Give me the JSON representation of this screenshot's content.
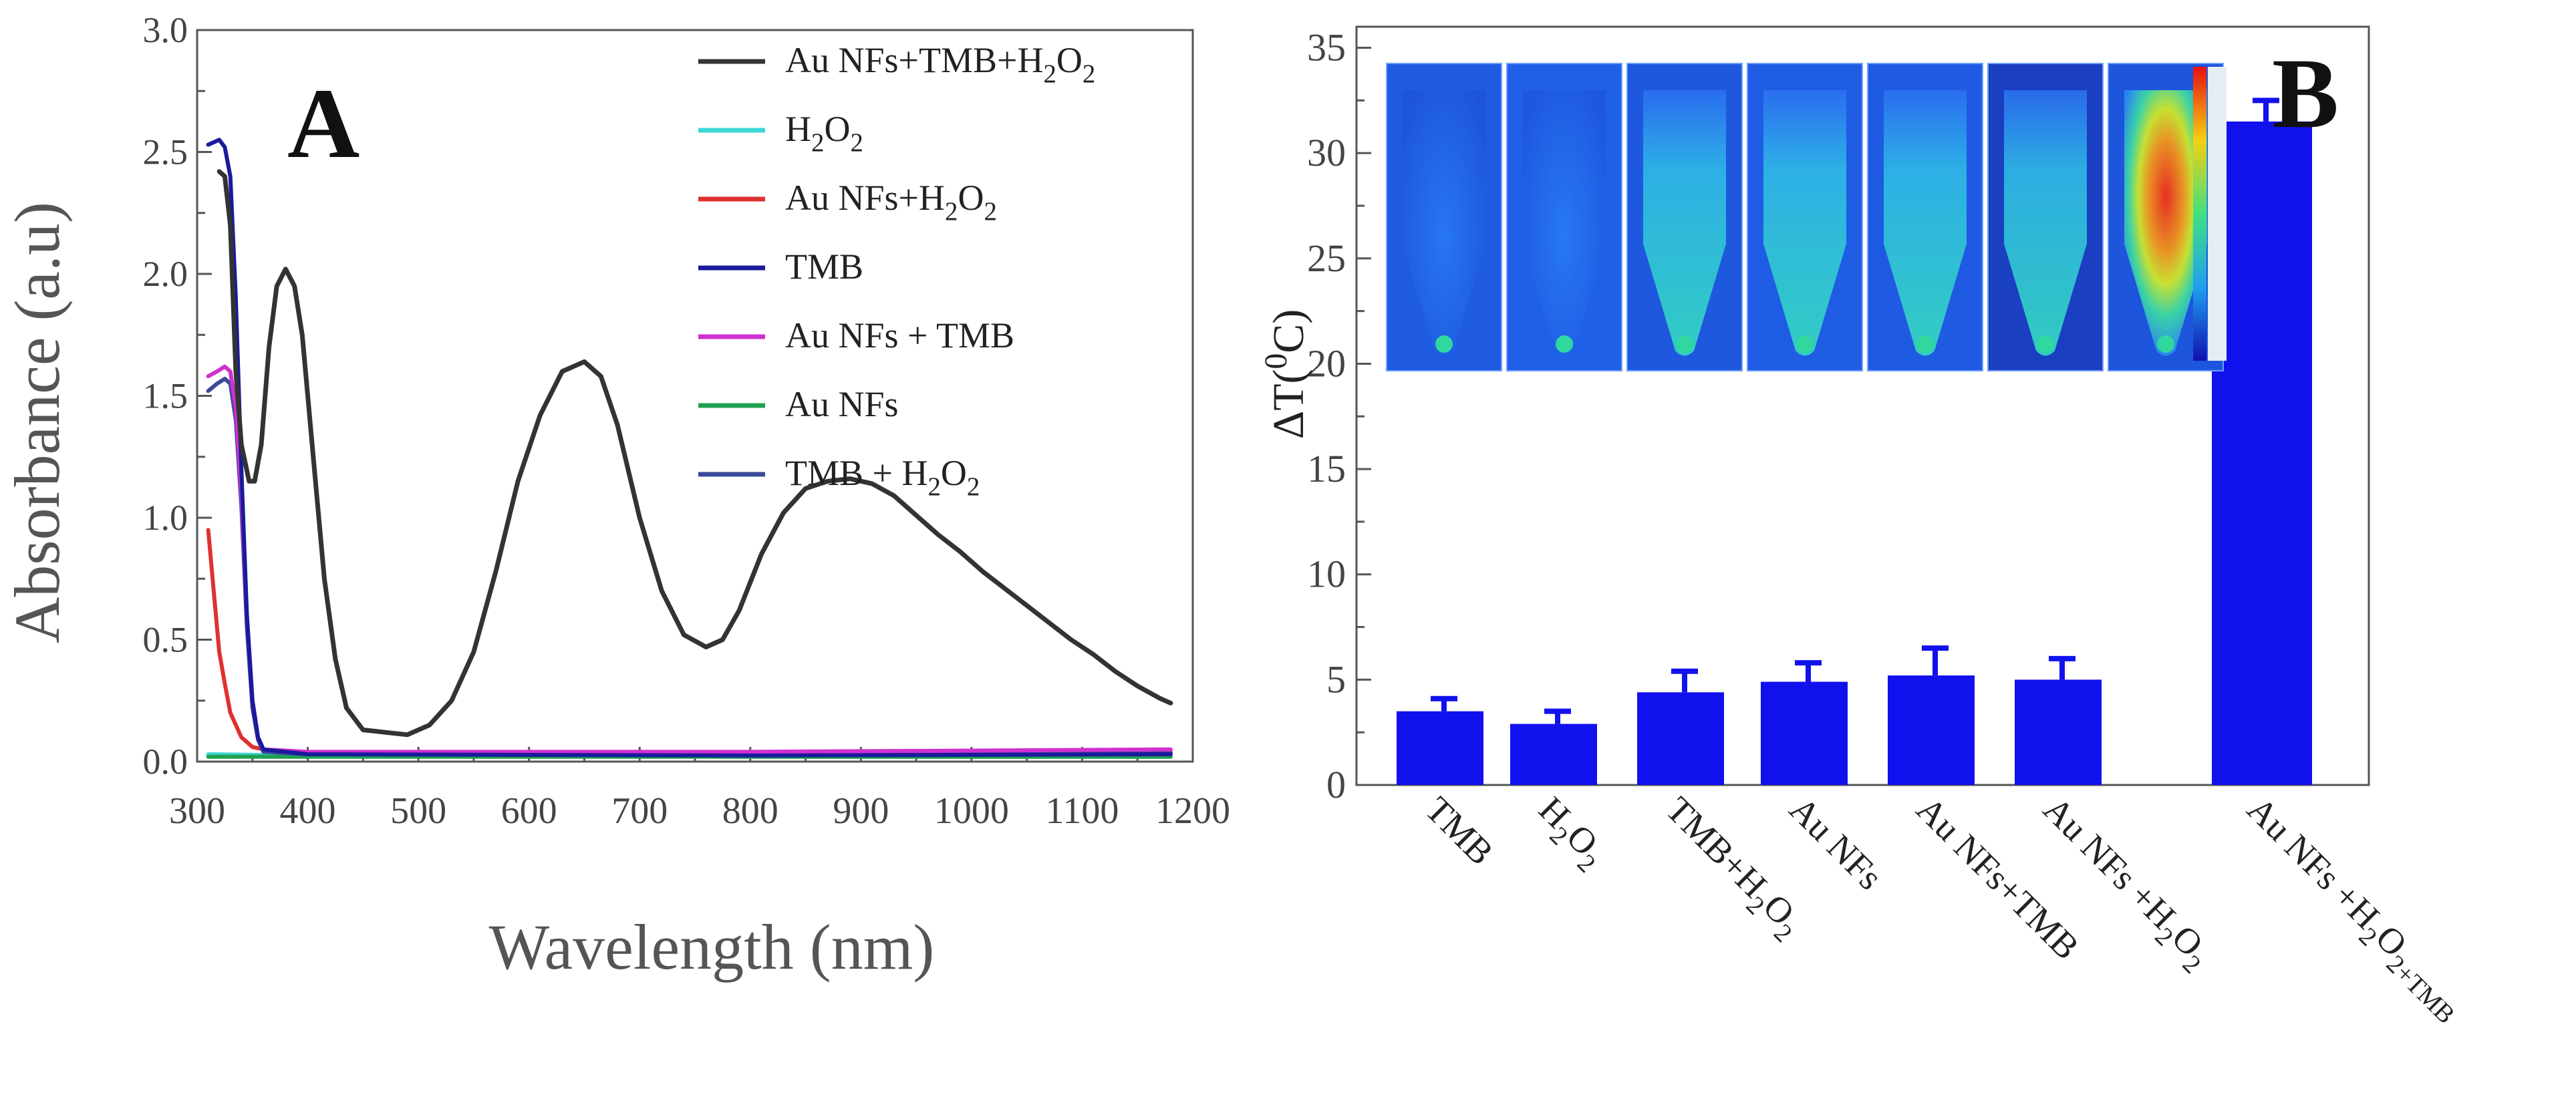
{
  "chart_data": [
    {
      "panel": "A",
      "type": "line",
      "title": "",
      "xlabel": "Wavelength (nm)",
      "ylabel": "Absorbance (a.u)",
      "xlim": [
        300,
        1200
      ],
      "ylim": [
        0,
        3.0
      ],
      "xticks": [
        300,
        400,
        500,
        600,
        700,
        800,
        900,
        1000,
        1100,
        1200
      ],
      "yticks": [
        0.0,
        0.5,
        1.0,
        1.5,
        2.0,
        2.5,
        3.0
      ],
      "yticks_labels": [
        "0.0",
        "0.5",
        "1.0",
        "1.5",
        "2.0",
        "2.5",
        "3.0"
      ],
      "legend_position": "top-right",
      "series": [
        {
          "name": "Au NFs+TMB+H2O2",
          "legend_parts": [
            [
              "Au NFs+TMB+H",
              0
            ],
            [
              "2",
              1
            ],
            [
              "O",
              0
            ],
            [
              "2",
              1
            ]
          ],
          "color": "#333333",
          "points": [
            [
              320,
              2.42
            ],
            [
              325,
              2.4
            ],
            [
              330,
              2.2
            ],
            [
              335,
              1.6
            ],
            [
              340,
              1.3
            ],
            [
              347,
              1.15
            ],
            [
              352,
              1.15
            ],
            [
              358,
              1.3
            ],
            [
              365,
              1.7
            ],
            [
              372,
              1.95
            ],
            [
              380,
              2.02
            ],
            [
              388,
              1.95
            ],
            [
              395,
              1.75
            ],
            [
              405,
              1.25
            ],
            [
              415,
              0.75
            ],
            [
              425,
              0.42
            ],
            [
              435,
              0.22
            ],
            [
              450,
              0.13
            ],
            [
              470,
              0.12
            ],
            [
              490,
              0.11
            ],
            [
              510,
              0.15
            ],
            [
              530,
              0.25
            ],
            [
              550,
              0.45
            ],
            [
              570,
              0.78
            ],
            [
              590,
              1.15
            ],
            [
              610,
              1.42
            ],
            [
              630,
              1.6
            ],
            [
              650,
              1.64
            ],
            [
              665,
              1.58
            ],
            [
              680,
              1.38
            ],
            [
              700,
              1.0
            ],
            [
              720,
              0.7
            ],
            [
              740,
              0.52
            ],
            [
              760,
              0.47
            ],
            [
              775,
              0.5
            ],
            [
              790,
              0.62
            ],
            [
              810,
              0.85
            ],
            [
              830,
              1.02
            ],
            [
              850,
              1.12
            ],
            [
              870,
              1.15
            ],
            [
              890,
              1.16
            ],
            [
              910,
              1.14
            ],
            [
              930,
              1.09
            ],
            [
              950,
              1.01
            ],
            [
              970,
              0.93
            ],
            [
              990,
              0.86
            ],
            [
              1010,
              0.78
            ],
            [
              1030,
              0.71
            ],
            [
              1050,
              0.64
            ],
            [
              1070,
              0.57
            ],
            [
              1090,
              0.5
            ],
            [
              1110,
              0.44
            ],
            [
              1130,
              0.37
            ],
            [
              1150,
              0.31
            ],
            [
              1170,
              0.26
            ],
            [
              1180,
              0.24
            ]
          ]
        },
        {
          "name": "H2O2",
          "legend_parts": [
            [
              "H",
              0
            ],
            [
              "2",
              1
            ],
            [
              "O",
              0
            ],
            [
              "2",
              1
            ]
          ],
          "color": "#3dd6d6",
          "points": [
            [
              310,
              0.03
            ],
            [
              400,
              0.025
            ],
            [
              800,
              0.02
            ],
            [
              1180,
              0.02
            ]
          ]
        },
        {
          "name": "Au NFs+H2O2",
          "legend_parts": [
            [
              "Au NFs+H",
              0
            ],
            [
              "2",
              1
            ],
            [
              "O",
              0
            ],
            [
              "2",
              1
            ]
          ],
          "color": "#e03030",
          "points": [
            [
              310,
              0.95
            ],
            [
              315,
              0.7
            ],
            [
              320,
              0.45
            ],
            [
              325,
              0.32
            ],
            [
              330,
              0.2
            ],
            [
              340,
              0.1
            ],
            [
              350,
              0.06
            ],
            [
              370,
              0.04
            ],
            [
              500,
              0.035
            ],
            [
              800,
              0.035
            ],
            [
              1180,
              0.04
            ]
          ]
        },
        {
          "name": "TMB",
          "legend_parts": [
            [
              "TMB",
              0
            ]
          ],
          "color": "#1a1a9c",
          "points": [
            [
              310,
              2.53
            ],
            [
              320,
              2.55
            ],
            [
              325,
              2.52
            ],
            [
              330,
              2.4
            ],
            [
              335,
              1.9
            ],
            [
              340,
              1.2
            ],
            [
              345,
              0.6
            ],
            [
              350,
              0.25
            ],
            [
              355,
              0.1
            ],
            [
              360,
              0.05
            ],
            [
              400,
              0.03
            ],
            [
              800,
              0.025
            ],
            [
              1180,
              0.03
            ]
          ]
        },
        {
          "name": "Au NFs + TMB",
          "legend_parts": [
            [
              "Au NFs + TMB",
              0
            ]
          ],
          "color": "#d030d0",
          "points": [
            [
              310,
              1.58
            ],
            [
              318,
              1.6
            ],
            [
              325,
              1.62
            ],
            [
              330,
              1.6
            ],
            [
              335,
              1.45
            ],
            [
              340,
              1.1
            ],
            [
              345,
              0.6
            ],
            [
              350,
              0.25
            ],
            [
              355,
              0.1
            ],
            [
              360,
              0.05
            ],
            [
              400,
              0.04
            ],
            [
              800,
              0.04
            ],
            [
              1180,
              0.05
            ]
          ]
        },
        {
          "name": "Au NFs",
          "legend_parts": [
            [
              "Au NFs",
              0
            ]
          ],
          "color": "#20a050",
          "points": [
            [
              310,
              0.02
            ],
            [
              400,
              0.02
            ],
            [
              800,
              0.02
            ],
            [
              1180,
              0.02
            ]
          ]
        },
        {
          "name": "TMB + H2O2",
          "legend_parts": [
            [
              "TMB + H",
              0
            ],
            [
              "2",
              1
            ],
            [
              "O",
              0
            ],
            [
              "2",
              1
            ]
          ],
          "color": "#3a4a9a",
          "points": [
            [
              310,
              1.52
            ],
            [
              318,
              1.55
            ],
            [
              325,
              1.57
            ],
            [
              330,
              1.55
            ],
            [
              335,
              1.4
            ],
            [
              340,
              1.05
            ],
            [
              345,
              0.55
            ],
            [
              350,
              0.22
            ],
            [
              355,
              0.09
            ],
            [
              360,
              0.04
            ],
            [
              400,
              0.03
            ],
            [
              800,
              0.03
            ],
            [
              1180,
              0.035
            ]
          ]
        }
      ]
    },
    {
      "panel": "B",
      "type": "bar",
      "title": "",
      "xlabel": "",
      "ylabel": "ΔT(°C)",
      "ylabel_parts": [
        [
          "ΔT(",
          0
        ],
        [
          "0",
          2
        ],
        [
          "C)",
          0
        ]
      ],
      "ylim": [
        0,
        36
      ],
      "yticks": [
        0,
        5,
        10,
        15,
        20,
        25,
        30,
        35
      ],
      "yticks_labels": [
        "0",
        "5",
        "10",
        "15",
        "20",
        "25",
        "30",
        "35"
      ],
      "bar_color": "#1111ee",
      "categories": [
        "TMB",
        "H2O2",
        "TMB+H2O2",
        "Au NFs",
        "Au NFs+TMB",
        "Au NFs +H2O2",
        "Au NFs +H2O2+TMB"
      ],
      "category_parts": [
        [
          [
            "TMB",
            0
          ]
        ],
        [
          [
            "H",
            0
          ],
          [
            "2",
            1
          ],
          [
            "O",
            0
          ],
          [
            "2",
            1
          ]
        ],
        [
          [
            "TMB+H",
            0
          ],
          [
            "2",
            1
          ],
          [
            "O",
            0
          ],
          [
            "2",
            1
          ]
        ],
        [
          [
            "Au NFs",
            0
          ]
        ],
        [
          [
            "Au NFs+TMB",
            0
          ]
        ],
        [
          [
            "Au NFs +H",
            0
          ],
          [
            "2",
            1
          ],
          [
            "O",
            0
          ],
          [
            "2",
            1
          ]
        ],
        [
          [
            "Au NFs +H",
            0
          ],
          [
            "2",
            1
          ],
          [
            "O",
            0
          ],
          [
            "2",
            1
          ],
          [
            "+TMB",
            1
          ]
        ]
      ],
      "values": [
        3.5,
        2.9,
        4.4,
        4.9,
        5.2,
        5.0,
        31.5
      ],
      "errors": [
        0.6,
        0.6,
        1.0,
        0.9,
        1.3,
        1.0,
        1.0
      ],
      "inset": "thermal images of sample tubes with color scale bar"
    }
  ],
  "panel_labels": {
    "a": "A",
    "b": "B"
  }
}
